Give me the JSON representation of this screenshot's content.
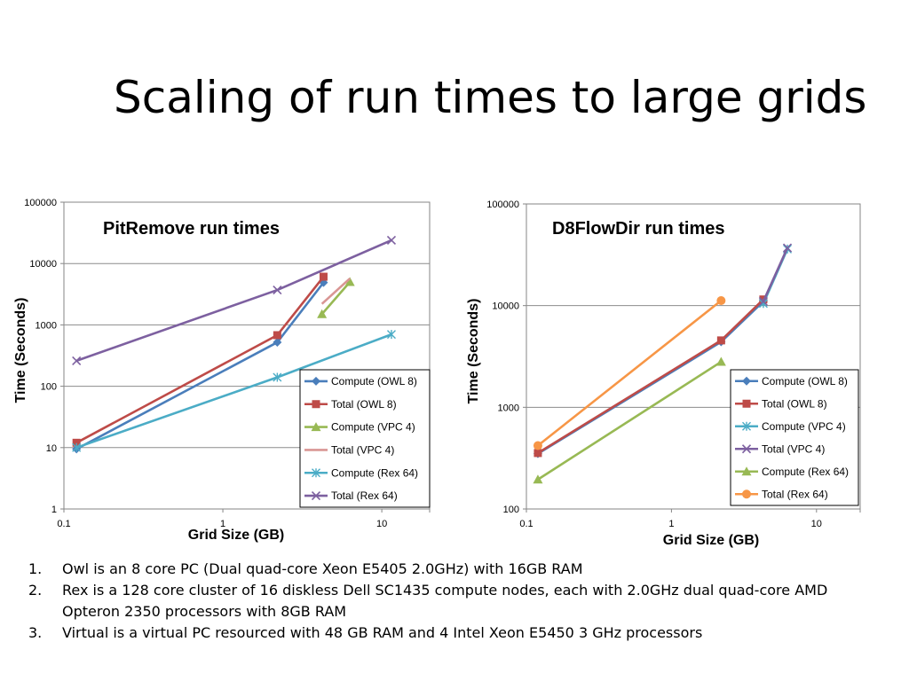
{
  "slide": {
    "title": "Scaling of run times to large grids"
  },
  "notes": [
    {
      "num": "1.",
      "text": "Owl is an 8 core PC (Dual quad-core Xeon E5405 2.0GHz) with 16GB RAM"
    },
    {
      "num": "2.",
      "text": "Rex is a 128 core cluster of 16 diskless Dell SC1435 compute nodes, each with 2.0GHz dual quad-core AMD Opteron 2350 processors with 8GB RAM"
    },
    {
      "num": "3.",
      "text": "Virtual is a virtual PC resourced with 48 GB RAM and 4 Intel Xeon E5450 3 GHz processors"
    }
  ],
  "chart_data": [
    {
      "type": "line",
      "title": "PitRemove run times",
      "xlabel": "Grid Size (GB)",
      "ylabel": "Time (Seconds)",
      "xscale": "log",
      "yscale": "log",
      "xlim": [
        0.1,
        20
      ],
      "ylim": [
        1,
        100000
      ],
      "xticks": [
        "0.1",
        "1",
        "10"
      ],
      "yticks": [
        "1",
        "10",
        "100",
        "1000",
        "10000",
        "100000"
      ],
      "grid": "horizontal",
      "legend_position": "bottom-right",
      "series": [
        {
          "name": "Compute (OWL 8)",
          "color": "#4a7ebb",
          "marker": "diamond",
          "x": [
            0.12,
            2.2,
            4.3
          ],
          "y": [
            9.5,
            520,
            4900
          ]
        },
        {
          "name": "Total (OWL 8)",
          "color": "#be4b48",
          "marker": "square",
          "x": [
            0.12,
            2.2,
            4.3
          ],
          "y": [
            12,
            680,
            6100
          ]
        },
        {
          "name": "Compute (VPC 4)",
          "color": "#98b954",
          "marker": "triangle",
          "x": [
            4.2,
            6.3
          ],
          "y": [
            1500,
            5000
          ]
        },
        {
          "name": "Total (VPC 4)",
          "color": "#d99694",
          "marker": "none",
          "x": [
            4.2,
            6.3
          ],
          "y": [
            2200,
            5700
          ]
        },
        {
          "name": "Compute (Rex 64)",
          "color": "#4bacc6",
          "marker": "star",
          "x": [
            0.12,
            2.2,
            11.5
          ],
          "y": [
            10,
            140,
            700
          ]
        },
        {
          "name": "Total (Rex 64)",
          "color": "#7d60a0",
          "marker": "x",
          "x": [
            0.12,
            2.2,
            11.5
          ],
          "y": [
            260,
            3700,
            24000
          ]
        }
      ]
    },
    {
      "type": "line",
      "title": "D8FlowDir run times",
      "xlabel": "Grid Size (GB)",
      "ylabel": "Time (Seconds)",
      "xscale": "log",
      "yscale": "log",
      "xlim": [
        0.1,
        20
      ],
      "ylim": [
        100,
        100000
      ],
      "xticks": [
        "0.1",
        "1",
        "10"
      ],
      "yticks": [
        "100",
        "1000",
        "10000",
        "100000"
      ],
      "grid": "horizontal",
      "legend_position": "bottom-right",
      "series": [
        {
          "name": "Compute (OWL 8)",
          "color": "#4a7ebb",
          "marker": "diamond",
          "x": [
            0.12,
            2.2,
            4.3
          ],
          "y": [
            350,
            4400,
            11000
          ]
        },
        {
          "name": "Total (OWL 8)",
          "color": "#be4b48",
          "marker": "square",
          "x": [
            0.12,
            2.2,
            4.3
          ],
          "y": [
            355,
            4550,
            11500
          ]
        },
        {
          "name": "Compute (VPC 4)",
          "color": "#4bacc6",
          "marker": "star",
          "x": [
            4.3,
            6.3
          ],
          "y": [
            10500,
            36000
          ]
        },
        {
          "name": "Total (VPC 4)",
          "color": "#7d60a0",
          "marker": "x",
          "x": [
            4.3,
            6.3
          ],
          "y": [
            11000,
            37000
          ]
        },
        {
          "name": "Compute (Rex 64)",
          "color": "#98b954",
          "marker": "triangle",
          "x": [
            0.12,
            2.2
          ],
          "y": [
            195,
            2800
          ]
        },
        {
          "name": "Total (Rex 64)",
          "color": "#f79646",
          "marker": "circle",
          "x": [
            0.12,
            2.2
          ],
          "y": [
            420,
            11200
          ]
        }
      ]
    }
  ]
}
